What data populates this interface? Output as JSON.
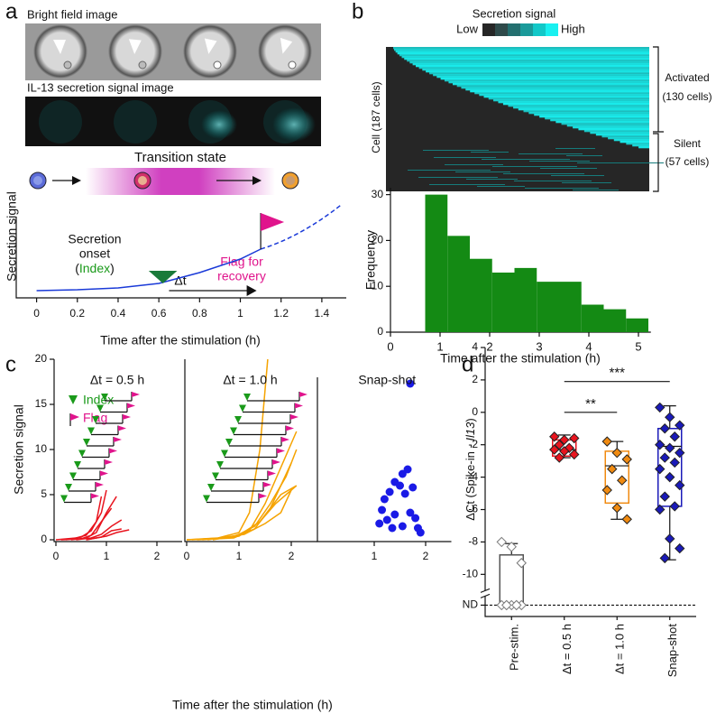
{
  "figure": {
    "panel_labels": [
      "a",
      "b",
      "c",
      "d"
    ]
  },
  "panel_a": {
    "bright_field": "Bright field image",
    "signal_image": "IL-13 secretion signal image",
    "transition": "Transition state",
    "ylabel": "Secretion signal",
    "onset_1": "Secretion",
    "onset_2": "onset",
    "open": "(",
    "index": "Index",
    "close": ")",
    "flag_1": "Flag for",
    "flag_2": "recovery",
    "delta": "Δt",
    "xlabel": "Time after the stimulation (h)",
    "xlim": [
      -0.1,
      1.52
    ],
    "xticks": [
      0,
      0.2,
      0.4,
      0.6,
      0.8,
      1,
      1.2,
      1.4
    ]
  },
  "heatmap": {
    "title": "Secretion signal",
    "low": "Low",
    "high": "High",
    "ylabel": "Cell (187 cells)",
    "activated": "Activated",
    "activated_n": "(130 cells)",
    "silent": "Silent",
    "silent_n": "(57 cells)"
  },
  "panel_c": {
    "legend_index": "Index",
    "legend_flag": "Flag",
    "xlabel": "Time after the stimulation (h)"
  },
  "chart_data": [
    {
      "type": "histogram",
      "ylabel": "Frequency",
      "xlabel": "Time after the stimulation (h)",
      "color": "#148a14",
      "bins": [
        0.7,
        1.15,
        1.6,
        2.05,
        2.5,
        2.95,
        3.4,
        3.85,
        4.3,
        4.75,
        5.2
      ],
      "counts": [
        30,
        21,
        16,
        13,
        14,
        11,
        11,
        6,
        5,
        3
      ],
      "xlim": [
        0,
        5.25
      ],
      "xticks": [
        0,
        1,
        2,
        3,
        4,
        5
      ],
      "ylim": [
        0,
        31.5
      ],
      "yticks": [
        0,
        10,
        20,
        30
      ]
    },
    {
      "type": "line",
      "title": "Δt = 0.5 h",
      "ylabel": "Secretion signal",
      "color": "#e8141e",
      "xlim": [
        0,
        2.5
      ],
      "xticks": [
        0,
        1,
        2
      ],
      "ylim": [
        0,
        20
      ],
      "yticks": [
        0,
        5,
        10,
        15,
        20
      ],
      "series": [
        {
          "x": [
            0,
            0.4,
            0.6,
            0.8,
            0.9
          ],
          "values": [
            0,
            0.2,
            0.5,
            2,
            4.8
          ]
        },
        {
          "x": [
            0.2,
            0.5,
            0.7,
            0.9,
            1.0
          ],
          "values": [
            0,
            0.3,
            1,
            3,
            5.5
          ]
        },
        {
          "x": [
            0.3,
            0.6,
            0.8,
            1.0,
            1.2
          ],
          "values": [
            0,
            0.2,
            0.8,
            3,
            4.8
          ]
        },
        {
          "x": [
            0.1,
            0.5,
            0.7,
            0.9,
            1.1
          ],
          "values": [
            0,
            0.1,
            0.5,
            2,
            3.5
          ]
        },
        {
          "x": [
            0.4,
            0.7,
            0.9,
            1.1,
            1.3
          ],
          "values": [
            0,
            0.2,
            0.6,
            1.5,
            2.2
          ]
        },
        {
          "x": [
            0.6,
            0.9,
            1.1,
            1.3
          ],
          "values": [
            0,
            0.3,
            1,
            1.2
          ]
        },
        {
          "x": [
            0.6,
            1.0,
            1.2,
            1.45
          ],
          "values": [
            0,
            0.4,
            0.8,
            1.1
          ]
        }
      ]
    },
    {
      "type": "line",
      "title": "Δt = 1.0 h",
      "color": "#f5a300",
      "xlim": [
        0,
        2.5
      ],
      "xticks": [
        0,
        1,
        2
      ],
      "ylim": [
        0,
        20
      ],
      "series": [
        {
          "x": [
            0,
            0.6,
            1.0,
            1.2,
            1.4,
            1.55
          ],
          "values": [
            0,
            0.2,
            0.8,
            3,
            10,
            20
          ]
        },
        {
          "x": [
            0,
            0.8,
            1.2,
            1.5,
            1.8,
            2.1
          ],
          "values": [
            0,
            0.2,
            1,
            4,
            8,
            12
          ]
        },
        {
          "x": [
            0.1,
            0.9,
            1.3,
            1.6,
            1.9,
            2.1
          ],
          "values": [
            0,
            0.3,
            1.5,
            4,
            7,
            10
          ]
        },
        {
          "x": [
            0.2,
            0.9,
            1.3,
            1.6,
            2.0
          ],
          "values": [
            0,
            0.2,
            1.2,
            3.5,
            8.5
          ]
        },
        {
          "x": [
            0.3,
            1.0,
            1.4,
            1.7,
            2.1
          ],
          "values": [
            0,
            0.4,
            2,
            4,
            6
          ]
        },
        {
          "x": [
            0.5,
            1.0,
            1.4,
            1.8,
            2.1
          ],
          "values": [
            0,
            0.5,
            2,
            5,
            6
          ]
        },
        {
          "x": [
            0.4,
            1.1,
            1.5,
            1.8,
            2.0
          ],
          "values": [
            0,
            0.6,
            1.8,
            3,
            5.5
          ]
        }
      ]
    },
    {
      "type": "scatter",
      "title": "Snap-shot",
      "color": "#1a1ae6",
      "xlim": [
        0,
        2.5
      ],
      "xticks": [
        1,
        2
      ],
      "ylim": [
        0,
        20
      ],
      "x": [
        1.7,
        1.65,
        1.55,
        1.4,
        1.5,
        1.3,
        1.2,
        1.6,
        1.75,
        1.15,
        1.25,
        1.4,
        1.35,
        1.55,
        1.7,
        1.8,
        1.85,
        1.9,
        1.1
      ],
      "values": [
        17.3,
        7.8,
        7.3,
        6.4,
        6.0,
        5.3,
        4.5,
        5.1,
        5.8,
        3.3,
        2.2,
        2.8,
        1.3,
        1.5,
        3.0,
        2.4,
        1.3,
        0.8,
        1.8
      ]
    },
    {
      "type": "box",
      "ylabel_parts": [
        "ΔCt (Spike-in - ",
        "Il13",
        ")"
      ],
      "categories": [
        "Pre-stim.",
        "Δt = 0.5 h",
        "Δt = 1.0 h",
        "Snap-shot"
      ],
      "colors": [
        "#555555",
        "#e8141e",
        "#f08a10",
        "#1a1ab8"
      ],
      "ylim": [
        -12.6,
        4
      ],
      "yticks": [
        4,
        2,
        0,
        -2,
        -4,
        -6,
        -8,
        -10,
        {
          "value": -11.9,
          "label": "ND"
        }
      ],
      "boxes": [
        {
          "whisker_low": -11.9,
          "q1": -11.9,
          "median": -11.9,
          "q3": -8.8,
          "whisker_high": -8.1,
          "points": [
            -8.0,
            -8.3,
            -9.3,
            -11.9,
            -11.9,
            -11.9,
            -11.9,
            -11.9,
            -11.9,
            -11.9
          ]
        },
        {
          "whisker_low": -2.8,
          "q1": -2.7,
          "median": -2.3,
          "q3": -1.7,
          "whisker_high": -1.4,
          "points": [
            -1.5,
            -1.7,
            -1.6,
            -2.0,
            -2.2,
            -2.3,
            -2.4,
            -2.6,
            -2.8
          ]
        },
        {
          "whisker_low": -6.6,
          "q1": -5.6,
          "median": -3.3,
          "q3": -2.4,
          "whisker_high": -1.8,
          "points": [
            -1.8,
            -2.5,
            -2.9,
            -3.5,
            -4.2,
            -4.8,
            -5.9,
            -6.6
          ]
        },
        {
          "whisker_low": -9.1,
          "q1": -5.8,
          "median": -2.1,
          "q3": -1.0,
          "whisker_high": 0.4,
          "points": [
            0.3,
            -0.3,
            -0.8,
            -1.0,
            -1.5,
            -2.0,
            -2.2,
            -2.5,
            -2.8,
            -3.1,
            -3.5,
            -4.0,
            -4.5,
            -5.2,
            -5.8,
            -6.0,
            -7.8,
            -8.4,
            -9.0
          ]
        }
      ],
      "annotations": [
        {
          "text": "**",
          "between": [
            "Δt = 0.5 h",
            "Δt = 1.0 h"
          ],
          "y": 0
        },
        {
          "text": "***",
          "between": [
            "Δt = 0.5 h",
            "Snap-shot"
          ],
          "y": 1.9
        }
      ]
    }
  ]
}
